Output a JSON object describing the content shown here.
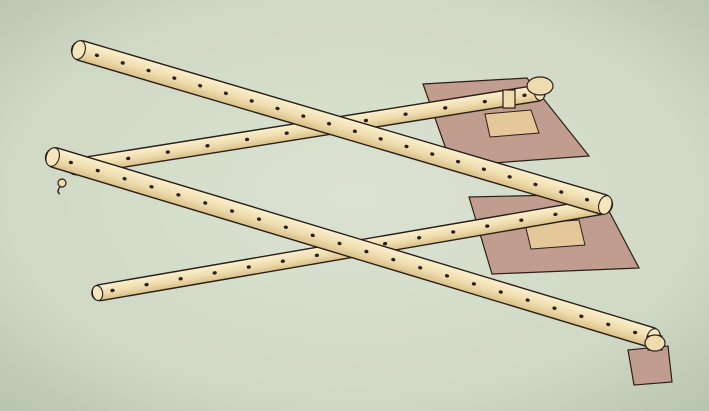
{
  "illustration": {
    "subject": "four-bar-pantograph-illustration",
    "colors": {
      "background": "#d5dccb",
      "background_vignette": "#bcc8b3",
      "wood": "#efdcae",
      "wood_shadow": "#d9bf87",
      "wood_highlight": "#fbf0cf",
      "outline": "#2a1f17",
      "hole": "#2a1f17",
      "paper_sheet": "#c09d8e",
      "paper_patch": "#e5c89a"
    }
  }
}
